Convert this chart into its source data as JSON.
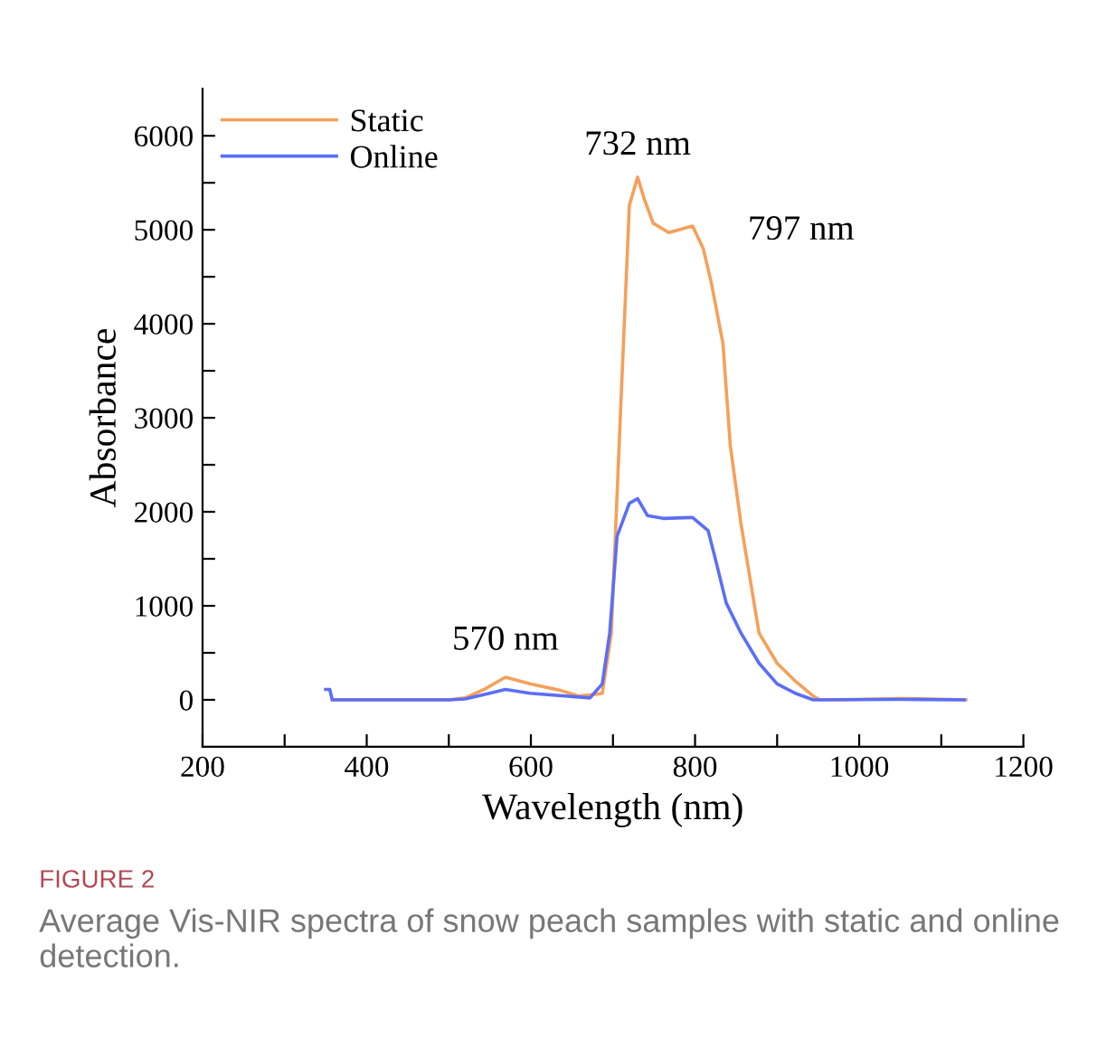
{
  "chart_data": {
    "type": "line",
    "xlabel": "Wavelength (nm)",
    "ylabel": "Absorbance",
    "xlim": [
      200,
      1200
    ],
    "ylim": [
      -500,
      6500
    ],
    "xticks": [
      200,
      {
        "value": 300,
        "label": null
      },
      400,
      {
        "value": 500,
        "label": null
      },
      600,
      {
        "value": 700,
        "label": null
      },
      800,
      {
        "value": 900,
        "label": null
      },
      1000,
      {
        "value": 1100,
        "label": null
      },
      1200
    ],
    "yticks": [
      0,
      {
        "value": 500,
        "label": null
      },
      1000,
      {
        "value": 1500,
        "label": null
      },
      2000,
      {
        "value": 2500,
        "label": null
      },
      3000,
      {
        "value": 3500,
        "label": null
      },
      4000,
      {
        "value": 4500,
        "label": null
      },
      5000,
      {
        "value": 5500,
        "label": null
      },
      6000
    ],
    "grid": false,
    "legend": "top left",
    "marker": "none",
    "line_style": "solid",
    "series": [
      {
        "name": "Static",
        "color": "#f5a05a",
        "x": [
          358,
          500,
          520,
          545,
          569,
          599,
          636,
          658,
          680,
          687,
          698,
          709,
          720,
          730,
          738,
          749,
          768,
          797,
          810,
          820,
          834,
          843,
          856,
          878,
          900,
          922,
          944,
          952,
          970,
          1050,
          1130
        ],
        "values": [
          0,
          0,
          20,
          120,
          240,
          170,
          100,
          40,
          60,
          70,
          710,
          3020,
          5260,
          5560,
          5330,
          5070,
          4970,
          5040,
          4800,
          4430,
          3790,
          2700,
          1870,
          710,
          390,
          200,
          40,
          0,
          0,
          15,
          0
        ]
      },
      {
        "name": "Online",
        "color": "#5b6ef5",
        "x": [
          350,
          355,
          358,
          500,
          520,
          545,
          569,
          599,
          672,
          687,
          696,
          705,
          720,
          730,
          742,
          761,
          797,
          816,
          827,
          838,
          856,
          878,
          900,
          922,
          944,
          1050,
          1128
        ],
        "values": [
          110,
          110,
          0,
          0,
          10,
          60,
          110,
          70,
          20,
          170,
          710,
          1740,
          2090,
          2140,
          1960,
          1930,
          1940,
          1800,
          1420,
          1030,
          710,
          390,
          170,
          70,
          0,
          5,
          0
        ]
      }
    ],
    "annotations": [
      {
        "text": "732 nm",
        "x": 730,
        "y": 5560
      },
      {
        "text": "797 nm",
        "x": 797,
        "y": 5040
      },
      {
        "text": "570 nm",
        "x": 569,
        "y": 240
      },
      "FIGURE 2",
      "Average Vis-NIR spectra of snow peach samples with static and online detection."
    ]
  }
}
